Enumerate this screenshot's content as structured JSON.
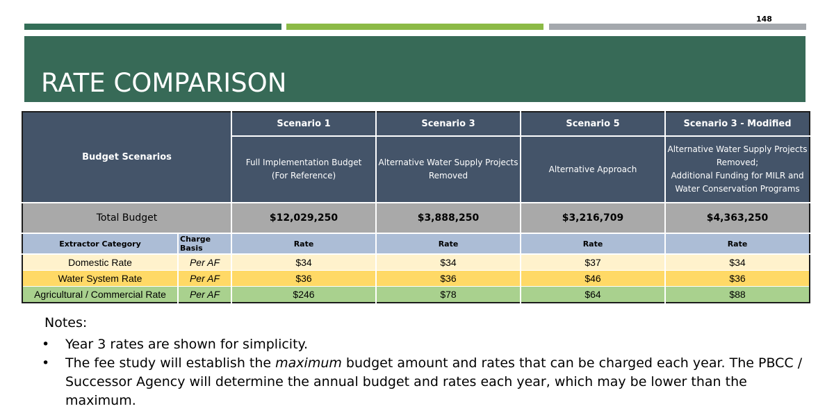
{
  "page_number": "148",
  "title": "RATE COMPARISON",
  "table": {
    "budget_scenarios_label": "Budget Scenarios",
    "scenarios": [
      {
        "name": "Scenario 1",
        "description": [
          "Full Implementation Budget",
          "(For Reference)"
        ]
      },
      {
        "name": "Scenario 3",
        "description": [
          "Alternative Water Supply Projects",
          "Removed"
        ]
      },
      {
        "name": "Scenario 5",
        "description": [
          "Alternative Approach"
        ]
      },
      {
        "name": "Scenario 3 - Modified",
        "description": [
          "Alternative Water Supply Projects",
          "Removed;",
          "Additional Funding for MILR and",
          "Water Conservation Programs"
        ]
      }
    ],
    "total_budget_label": "Total Budget",
    "total_budgets": [
      "$12,029,250",
      "$3,888,250",
      "$3,216,709",
      "$4,363,250"
    ],
    "column_headers": {
      "extractor_category": "Extractor Category",
      "charge_basis": "Charge Basis",
      "rate": "Rate"
    },
    "rows": [
      {
        "category": "Domestic Rate",
        "basis": "Per AF",
        "rates": [
          "$34",
          "$34",
          "$37",
          "$34"
        ],
        "color": "#fff2cc"
      },
      {
        "category": "Water System Rate",
        "basis": "Per AF",
        "rates": [
          "$36",
          "$36",
          "$46",
          "$36"
        ],
        "color": "#ffd966"
      },
      {
        "category": "Agricultural / Commercial Rate",
        "basis": "Per AF",
        "rates": [
          "$246",
          "$78",
          "$64",
          "$88"
        ],
        "color": "#a9d18e"
      }
    ]
  },
  "notes": {
    "title": "Notes:",
    "items": [
      {
        "parts": [
          "Year 3 rates are shown for simplicity."
        ]
      },
      {
        "parts": [
          "The fee study will establish the ",
          "maximum",
          " budget amount and rates that can be charged each year. The PBCC / Successor Agency will determine the annual budget and rates each year, which may be lower than the maximum."
        ]
      }
    ]
  },
  "colors": {
    "title_band": "#376a57",
    "bar_green_dark": "#336e57",
    "bar_green_light": "#8cba46",
    "bar_gray": "#a4a8ad",
    "header_blue": "#445469",
    "column_header_blue": "#acbdd6",
    "total_gray": "#a9a9a9"
  }
}
